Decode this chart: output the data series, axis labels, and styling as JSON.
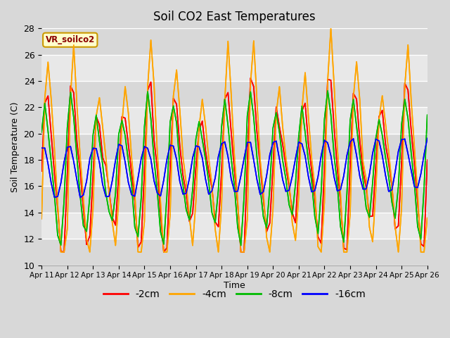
{
  "title": "Soil CO2 East Temperatures",
  "xlabel": "Time",
  "ylabel": "Soil Temperature (C)",
  "ylim": [
    10,
    28
  ],
  "xlim": [
    0,
    15
  ],
  "label_text": "VR_soilco2",
  "x_tick_labels": [
    "Apr 11",
    "Apr 12",
    "Apr 13",
    "Apr 14",
    "Apr 15",
    "Apr 16",
    "Apr 17",
    "Apr 18",
    "Apr 19",
    "Apr 20",
    "Apr 21",
    "Apr 22",
    "Apr 23",
    "Apr 24",
    "Apr 25",
    "Apr 26"
  ],
  "series_colors": [
    "#ff0000",
    "#ffa500",
    "#00bb00",
    "#0000ff"
  ],
  "series_labels": [
    "-2cm",
    "-4cm",
    "-8cm",
    "-16cm"
  ],
  "bg_color": "#d8d8d8",
  "plot_bg_color": "#e8e8e8",
  "plot_bg_color2": "#f0f0f0",
  "grid_color": "#ffffff",
  "title_fontsize": 12,
  "axis_fontsize": 9,
  "legend_fontsize": 10,
  "n_points": 121,
  "days": 15,
  "base_temp": 17.0,
  "amp_2cm": 5.0,
  "amp_4cm": 7.0,
  "amp_8cm": 4.5,
  "amp_16cm": 2.0,
  "phase_2cm": 0.0,
  "phase_4cm": -0.3,
  "phase_8cm": 0.5,
  "phase_16cm": 1.2,
  "freq": 1.0
}
